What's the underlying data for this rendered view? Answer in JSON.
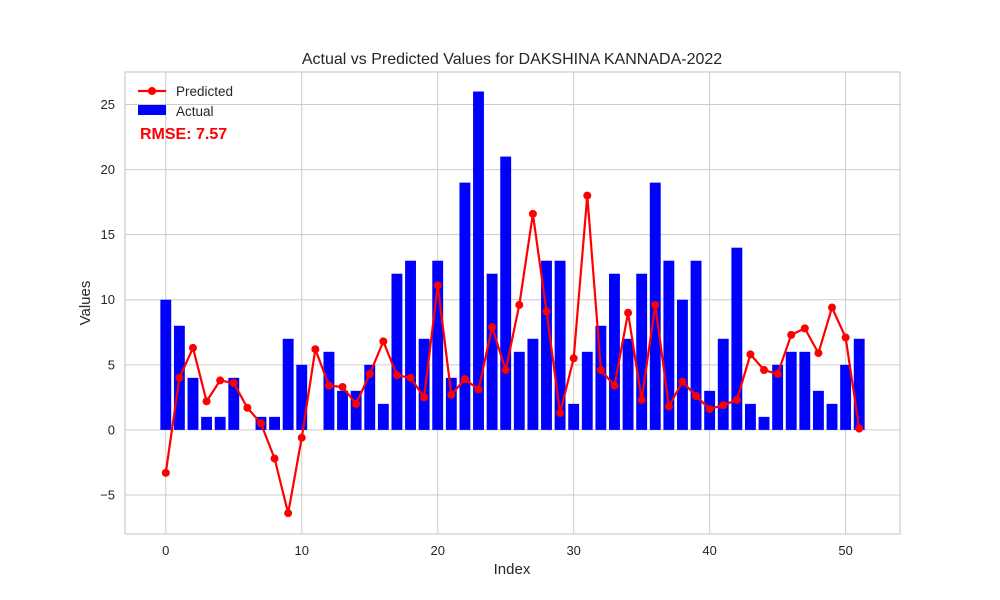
{
  "chart_data": {
    "type": "bar",
    "title": "Actual vs Predicted Values for DAKSHINA KANNADA-2022",
    "xlabel": "Index",
    "ylabel": "Values",
    "xlim": [
      -3,
      54
    ],
    "ylim": [
      -8,
      27.5
    ],
    "xticks": [
      0,
      10,
      20,
      30,
      40,
      50
    ],
    "yticks": [
      -5,
      0,
      5,
      10,
      15,
      20,
      25
    ],
    "grid": true,
    "legend_position": "top-left",
    "annotation": "RMSE: 7.57",
    "series": [
      {
        "name": "Actual",
        "kind": "bar",
        "color": "#0000ff",
        "values": [
          10,
          8,
          4,
          1,
          1,
          4,
          0,
          1,
          1,
          7,
          5,
          0,
          6,
          3,
          3,
          5,
          2,
          12,
          13,
          7,
          13,
          4,
          19,
          26,
          12,
          21,
          6,
          7,
          13,
          13,
          2,
          6,
          8,
          12,
          7,
          12,
          19,
          13,
          10,
          13,
          3,
          7,
          14,
          2,
          1,
          5,
          6,
          6,
          3,
          2,
          5,
          7
        ]
      },
      {
        "name": "Predicted",
        "kind": "line",
        "color": "#ff0000",
        "values": [
          -3.3,
          4.0,
          6.3,
          2.2,
          3.8,
          3.6,
          1.7,
          0.5,
          -2.2,
          -6.4,
          -0.6,
          6.2,
          3.4,
          3.3,
          2.0,
          4.3,
          6.8,
          4.2,
          4.0,
          2.5,
          11.1,
          2.7,
          3.9,
          3.1,
          7.9,
          4.6,
          9.6,
          16.6,
          9.1,
          1.3,
          5.5,
          18.0,
          4.6,
          3.4,
          9.0,
          2.3,
          9.6,
          1.8,
          3.7,
          2.6,
          1.6,
          1.9,
          2.3,
          5.8,
          4.6,
          4.3,
          7.3,
          7.8,
          5.9,
          9.4,
          7.1,
          0.1
        ]
      }
    ]
  }
}
